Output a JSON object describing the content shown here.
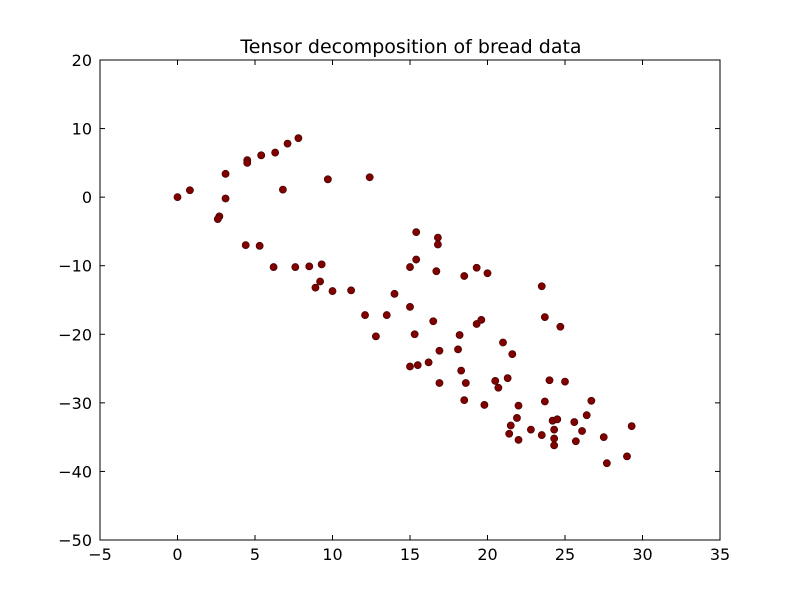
{
  "chart_data": {
    "type": "scatter",
    "title": "Tensor decomposition of bread data",
    "xlabel": "",
    "ylabel": "",
    "xlim": [
      -5,
      35
    ],
    "ylim": [
      -50,
      20
    ],
    "xticks": [
      -5,
      0,
      5,
      10,
      15,
      20,
      25,
      30,
      35
    ],
    "yticks": [
      20,
      10,
      0,
      -10,
      -20,
      -30,
      -40,
      -50
    ],
    "grid": false,
    "legend": "none",
    "marker_color": "#800000",
    "series": [
      {
        "points": [
          [
            0.0,
            0.0
          ],
          [
            0.8,
            1.0
          ],
          [
            3.1,
            3.4
          ],
          [
            3.1,
            -0.2
          ],
          [
            2.7,
            -2.8
          ],
          [
            2.6,
            -3.2
          ],
          [
            4.5,
            5.4
          ],
          [
            4.5,
            5.0
          ],
          [
            5.4,
            6.1
          ],
          [
            6.3,
            6.5
          ],
          [
            7.1,
            7.8
          ],
          [
            7.8,
            8.6
          ],
          [
            6.8,
            1.1
          ],
          [
            9.7,
            2.6
          ],
          [
            12.4,
            2.9
          ],
          [
            4.4,
            -7.0
          ],
          [
            5.3,
            -7.1
          ],
          [
            6.2,
            -10.2
          ],
          [
            7.6,
            -10.2
          ],
          [
            8.5,
            -10.1
          ],
          [
            9.3,
            -9.8
          ],
          [
            9.2,
            -12.3
          ],
          [
            8.9,
            -13.2
          ],
          [
            10.0,
            -13.7
          ],
          [
            11.2,
            -13.6
          ],
          [
            12.1,
            -17.2
          ],
          [
            12.8,
            -20.3
          ],
          [
            13.5,
            -17.2
          ],
          [
            14.0,
            -14.1
          ],
          [
            15.4,
            -5.1
          ],
          [
            16.8,
            -5.9
          ],
          [
            16.8,
            -6.9
          ],
          [
            15.4,
            -9.1
          ],
          [
            15.0,
            -10.2
          ],
          [
            16.7,
            -10.8
          ],
          [
            18.5,
            -11.5
          ],
          [
            19.3,
            -10.3
          ],
          [
            20.0,
            -11.1
          ],
          [
            15.0,
            -16.0
          ],
          [
            15.3,
            -20.0
          ],
          [
            16.5,
            -18.1
          ],
          [
            18.2,
            -20.1
          ],
          [
            19.3,
            -18.5
          ],
          [
            19.6,
            -17.9
          ],
          [
            21.0,
            -21.2
          ],
          [
            21.6,
            -22.9
          ],
          [
            18.1,
            -22.2
          ],
          [
            16.9,
            -22.4
          ],
          [
            16.2,
            -24.1
          ],
          [
            15.5,
            -24.5
          ],
          [
            15.0,
            -24.7
          ],
          [
            18.3,
            -25.3
          ],
          [
            16.9,
            -27.1
          ],
          [
            18.6,
            -27.1
          ],
          [
            18.5,
            -29.6
          ],
          [
            19.8,
            -30.3
          ],
          [
            20.5,
            -26.8
          ],
          [
            20.7,
            -27.8
          ],
          [
            21.3,
            -26.4
          ],
          [
            22.0,
            -30.4
          ],
          [
            21.5,
            -33.3
          ],
          [
            21.9,
            -32.2
          ],
          [
            21.4,
            -34.5
          ],
          [
            22.0,
            -35.4
          ],
          [
            22.8,
            -33.9
          ],
          [
            23.5,
            -13.0
          ],
          [
            23.7,
            -17.5
          ],
          [
            24.7,
            -18.9
          ],
          [
            23.7,
            -29.8
          ],
          [
            24.0,
            -26.7
          ],
          [
            25.0,
            -26.9
          ],
          [
            24.2,
            -32.6
          ],
          [
            24.5,
            -32.4
          ],
          [
            24.3,
            -33.9
          ],
          [
            23.5,
            -34.7
          ],
          [
            24.3,
            -35.2
          ],
          [
            24.3,
            -36.2
          ],
          [
            25.6,
            -32.8
          ],
          [
            25.7,
            -35.6
          ],
          [
            26.1,
            -34.1
          ],
          [
            26.4,
            -31.8
          ],
          [
            26.7,
            -29.7
          ],
          [
            27.5,
            -35.0
          ],
          [
            27.7,
            -38.8
          ],
          [
            29.0,
            -37.8
          ],
          [
            29.3,
            -33.4
          ]
        ]
      }
    ]
  }
}
